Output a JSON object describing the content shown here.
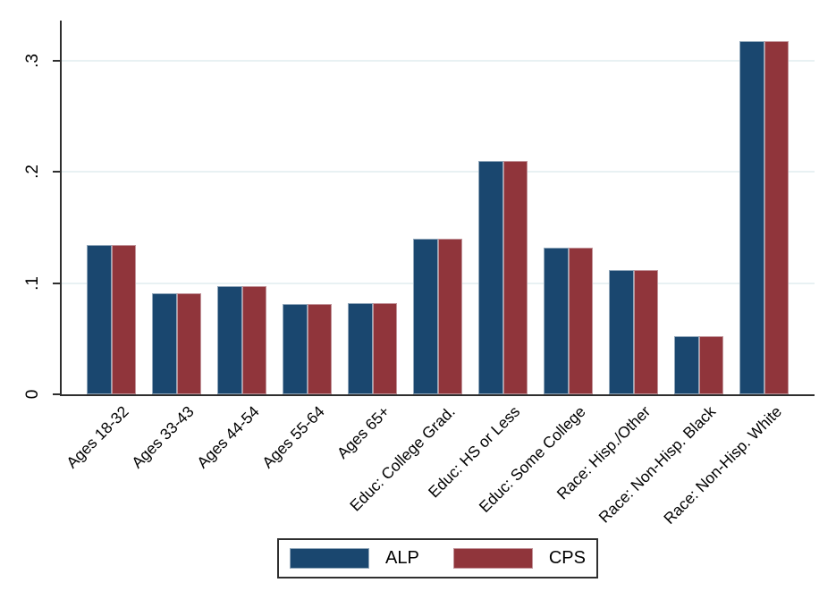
{
  "chart_data": {
    "type": "bar",
    "title": "",
    "categories": [
      "Ages 18-32",
      "Ages 33-43",
      "Ages 44-54",
      "Ages 55-64",
      "Ages 65+",
      "Educ: College Grad.",
      "Educ: HS or Less",
      "Educ: Some College",
      "Race: Hisp./Other",
      "Race: Non-Hisp. Black",
      "Race: Non-Hisp. White"
    ],
    "series": [
      {
        "name": "ALP",
        "color": "#1a476f",
        "border_color": "#91a7ba",
        "values": [
          0.134,
          0.091,
          0.097,
          0.081,
          0.082,
          0.14,
          0.21,
          0.132,
          0.112,
          0.052,
          0.317
        ]
      },
      {
        "name": "CPS",
        "color": "#90353b",
        "border_color": "#c2949a",
        "values": [
          0.134,
          0.091,
          0.097,
          0.081,
          0.082,
          0.14,
          0.21,
          0.132,
          0.112,
          0.052,
          0.317
        ]
      }
    ],
    "y_axis": {
      "range": [
        0,
        0.336
      ],
      "label_angle_deg": 90,
      "ticks": [
        {
          "value": 0,
          "label": "0"
        },
        {
          "value": 0.1,
          "label": ".1"
        },
        {
          "value": 0.2,
          "label": ".2"
        },
        {
          "value": 0.3,
          "label": ".3"
        }
      ]
    },
    "x_axis": {
      "label_angle_deg": 45
    },
    "grid": true,
    "legend": {
      "position": "bottom-center",
      "entries": [
        "ALP",
        "CPS"
      ]
    },
    "colors": {
      "gridline": "#e8f1f3",
      "axis": "#2e2e2e",
      "text": "#000000",
      "background": "#ffffff"
    }
  }
}
